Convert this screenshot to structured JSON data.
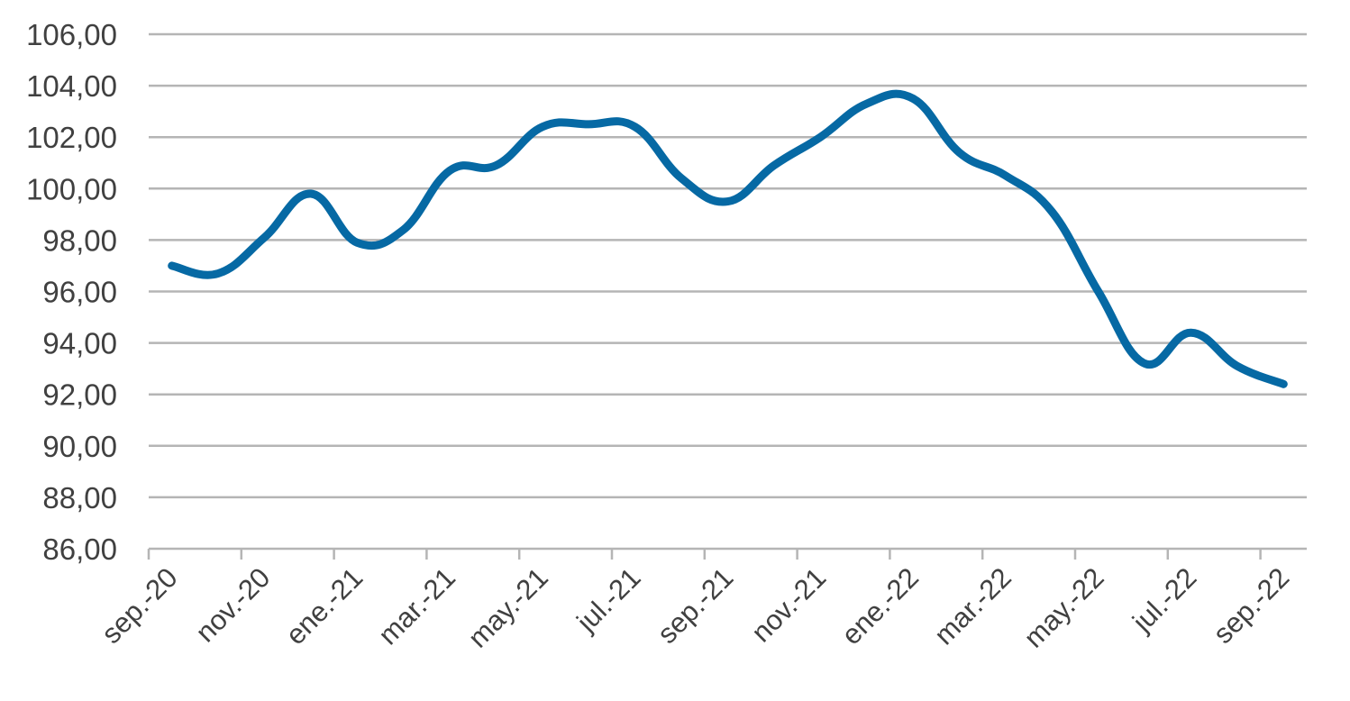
{
  "chart_data": {
    "type": "line",
    "title": "",
    "xlabel": "",
    "ylabel": "",
    "ylim": [
      86,
      106
    ],
    "yticks": [
      "86,00",
      "88,00",
      "90,00",
      "92,00",
      "94,00",
      "96,00",
      "98,00",
      "100,00",
      "102,00",
      "104,00",
      "106,00"
    ],
    "xtick_labels": [
      "sep.-20",
      "nov.-20",
      "ene.-21",
      "mar.-21",
      "may.-21",
      "jul.-21",
      "sep.-21",
      "nov.-21",
      "ene.-22",
      "mar.-22",
      "may.-22",
      "jul.-22",
      "sep.-22"
    ],
    "grid": true,
    "legend": "none",
    "x": [
      "sep.-20",
      "oct.-20",
      "nov.-20",
      "dic.-20",
      "ene.-21",
      "feb.-21",
      "mar.-21",
      "abr.-21",
      "may.-21",
      "jun.-21",
      "jul.-21",
      "ago.-21",
      "sep.-21",
      "oct.-21",
      "nov.-21",
      "dic.-21",
      "ene.-22",
      "feb.-22",
      "mar.-22",
      "abr.-22",
      "may.-22",
      "jun.-22",
      "jul.-22",
      "ago.-22",
      "sep.-22"
    ],
    "series": [
      {
        "color": "#0669a4",
        "values": [
          97.0,
          96.7,
          98.1,
          99.8,
          97.9,
          98.4,
          100.7,
          100.9,
          102.4,
          102.5,
          102.4,
          100.4,
          99.5,
          100.9,
          102.0,
          103.3,
          103.5,
          101.4,
          100.5,
          99.1,
          96.0,
          93.2,
          94.4,
          93.1,
          92.4
        ]
      }
    ]
  }
}
